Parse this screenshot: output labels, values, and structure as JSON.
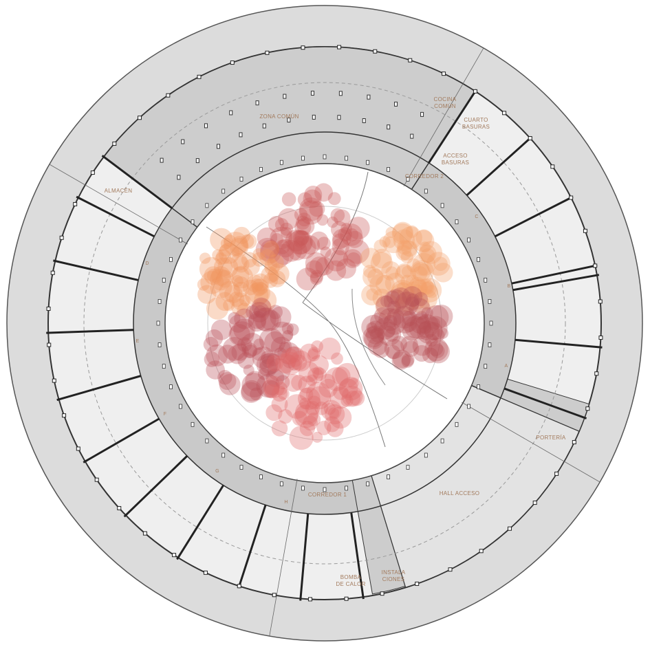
{
  "labels": [
    {
      "lines": [
        "ZONA COMÚN"
      ]
    },
    {
      "lines": [
        "COCINA",
        "COMÚN"
      ]
    },
    {
      "lines": [
        "CUARTO",
        "BASURAS"
      ]
    },
    {
      "lines": [
        "ACCESO",
        "BASURAS"
      ]
    },
    {
      "lines": [
        "CORREDOR 2"
      ]
    },
    {
      "lines": [
        "ALMACÉN"
      ]
    },
    {
      "lines": [
        "PORTERÍA"
      ]
    },
    {
      "lines": [
        "HALL ACCESO"
      ]
    },
    {
      "lines": [
        "CORREDOR 1"
      ]
    },
    {
      "lines": [
        "BOMBA",
        "DE CALOR"
      ]
    },
    {
      "lines": [
        "INSTALA",
        "CIONES"
      ]
    }
  ],
  "entrances": [
    "A",
    "B",
    "C",
    "D",
    "E",
    "F",
    "G",
    "H"
  ]
}
